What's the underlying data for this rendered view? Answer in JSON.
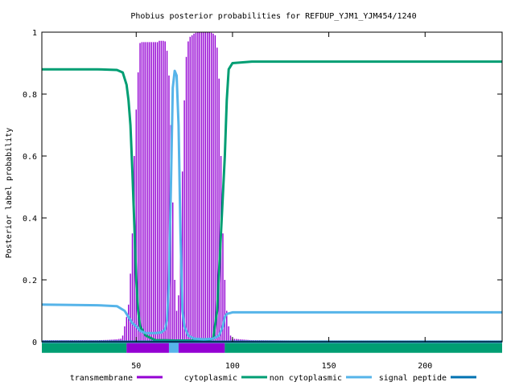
{
  "chart_data": {
    "type": "line",
    "title": "Phobius posterior probabilities for REFDUP_YJM1_YJM454/1240",
    "xlabel": "",
    "ylabel": "Posterior label probability",
    "xlim": [
      1,
      240
    ],
    "ylim": [
      0,
      1
    ],
    "x_ticks": [
      50,
      100,
      150,
      200
    ],
    "y_ticks": [
      0,
      0.2,
      0.4,
      0.6,
      0.8,
      1
    ],
    "y_tick_labels": [
      "0",
      "0.2",
      "0.4",
      "0.6",
      "0.8",
      "1"
    ],
    "grid": false,
    "legend_position": "bottom",
    "series": [
      {
        "name": "transmembrane",
        "style": "impulses",
        "color": "#9400d3",
        "points": [
          [
            25,
            0.005
          ],
          [
            30,
            0.005
          ],
          [
            35,
            0.006
          ],
          [
            40,
            0.008
          ],
          [
            42,
            0.01
          ],
          [
            43,
            0.02
          ],
          [
            44,
            0.05
          ],
          [
            45,
            0.08
          ],
          [
            46,
            0.12
          ],
          [
            47,
            0.22
          ],
          [
            48,
            0.35
          ],
          [
            49,
            0.6
          ],
          [
            50,
            0.75
          ],
          [
            51,
            0.87
          ],
          [
            52,
            0.965
          ],
          [
            53,
            0.968
          ],
          [
            54,
            0.968
          ],
          [
            55,
            0.968
          ],
          [
            56,
            0.968
          ],
          [
            57,
            0.968
          ],
          [
            58,
            0.968
          ],
          [
            59,
            0.968
          ],
          [
            60,
            0.968
          ],
          [
            61,
            0.968
          ],
          [
            62,
            0.972
          ],
          [
            63,
            0.972
          ],
          [
            64,
            0.972
          ],
          [
            65,
            0.97
          ],
          [
            66,
            0.94
          ],
          [
            67,
            0.86
          ],
          [
            68,
            0.7
          ],
          [
            69,
            0.45
          ],
          [
            70,
            0.2
          ],
          [
            71,
            0.1
          ],
          [
            72,
            0.15
          ],
          [
            73,
            0.3
          ],
          [
            74,
            0.55
          ],
          [
            75,
            0.78
          ],
          [
            76,
            0.92
          ],
          [
            77,
            0.97
          ],
          [
            78,
            0.985
          ],
          [
            79,
            0.99
          ],
          [
            80,
            0.995
          ],
          [
            81,
            0.998
          ],
          [
            82,
            1.0
          ],
          [
            83,
            1.0
          ],
          [
            84,
            1.0
          ],
          [
            85,
            1.0
          ],
          [
            86,
            1.0
          ],
          [
            87,
            1.0
          ],
          [
            88,
            1.0
          ],
          [
            89,
            0.998
          ],
          [
            90,
            0.995
          ],
          [
            91,
            0.99
          ],
          [
            92,
            0.95
          ],
          [
            93,
            0.85
          ],
          [
            94,
            0.6
          ],
          [
            95,
            0.35
          ],
          [
            96,
            0.2
          ],
          [
            97,
            0.1
          ],
          [
            98,
            0.05
          ],
          [
            99,
            0.02
          ],
          [
            100,
            0.01
          ],
          [
            110,
            0.005
          ],
          [
            130,
            0.004
          ],
          [
            160,
            0.004
          ],
          [
            190,
            0.004
          ],
          [
            220,
            0.004
          ],
          [
            240,
            0.004
          ]
        ]
      },
      {
        "name": "cytoplasmic",
        "style": "line",
        "color": "#009e73",
        "points": [
          [
            1,
            0.88
          ],
          [
            30,
            0.88
          ],
          [
            40,
            0.878
          ],
          [
            43,
            0.87
          ],
          [
            45,
            0.83
          ],
          [
            46,
            0.78
          ],
          [
            47,
            0.7
          ],
          [
            48,
            0.55
          ],
          [
            49,
            0.38
          ],
          [
            50,
            0.2
          ],
          [
            51,
            0.1
          ],
          [
            52,
            0.05
          ],
          [
            55,
            0.02
          ],
          [
            60,
            0.005
          ],
          [
            65,
            0.005
          ],
          [
            70,
            0.004
          ],
          [
            75,
            0.004
          ],
          [
            85,
            0.004
          ],
          [
            90,
            0.01
          ],
          [
            92,
            0.1
          ],
          [
            94,
            0.35
          ],
          [
            96,
            0.6
          ],
          [
            97,
            0.78
          ],
          [
            98,
            0.88
          ],
          [
            100,
            0.9
          ],
          [
            110,
            0.905
          ],
          [
            140,
            0.905
          ],
          [
            200,
            0.905
          ],
          [
            240,
            0.905
          ]
        ]
      },
      {
        "name": "non cytoplasmic",
        "style": "line",
        "color": "#56b4e9",
        "points": [
          [
            1,
            0.12
          ],
          [
            30,
            0.118
          ],
          [
            40,
            0.115
          ],
          [
            44,
            0.1
          ],
          [
            46,
            0.08
          ],
          [
            48,
            0.06
          ],
          [
            50,
            0.05
          ],
          [
            52,
            0.035
          ],
          [
            55,
            0.028
          ],
          [
            60,
            0.028
          ],
          [
            63,
            0.03
          ],
          [
            65,
            0.04
          ],
          [
            66,
            0.07
          ],
          [
            67,
            0.2
          ],
          [
            68,
            0.5
          ],
          [
            69,
            0.82
          ],
          [
            70,
            0.875
          ],
          [
            71,
            0.86
          ],
          [
            72,
            0.7
          ],
          [
            73,
            0.35
          ],
          [
            74,
            0.1
          ],
          [
            75,
            0.05
          ],
          [
            77,
            0.02
          ],
          [
            80,
            0.01
          ],
          [
            85,
            0.008
          ],
          [
            90,
            0.01
          ],
          [
            93,
            0.02
          ],
          [
            95,
            0.05
          ],
          [
            96,
            0.08
          ],
          [
            97,
            0.09
          ],
          [
            100,
            0.095
          ],
          [
            150,
            0.095
          ],
          [
            240,
            0.095
          ]
        ]
      },
      {
        "name": "signal peptide",
        "style": "line",
        "color": "#0072b2",
        "points": [
          [
            1,
            0.0
          ],
          [
            240,
            0.0
          ]
        ]
      }
    ],
    "bottom_bands": [
      {
        "from": 1,
        "to": 45,
        "color": "#009e73"
      },
      {
        "from": 45,
        "to": 67,
        "color": "#9400d3"
      },
      {
        "from": 67,
        "to": 72,
        "color": "#56b4e9"
      },
      {
        "from": 72,
        "to": 96,
        "color": "#9400d3"
      },
      {
        "from": 96,
        "to": 240,
        "color": "#009e73"
      }
    ],
    "bottom_band_value": -0.02
  }
}
